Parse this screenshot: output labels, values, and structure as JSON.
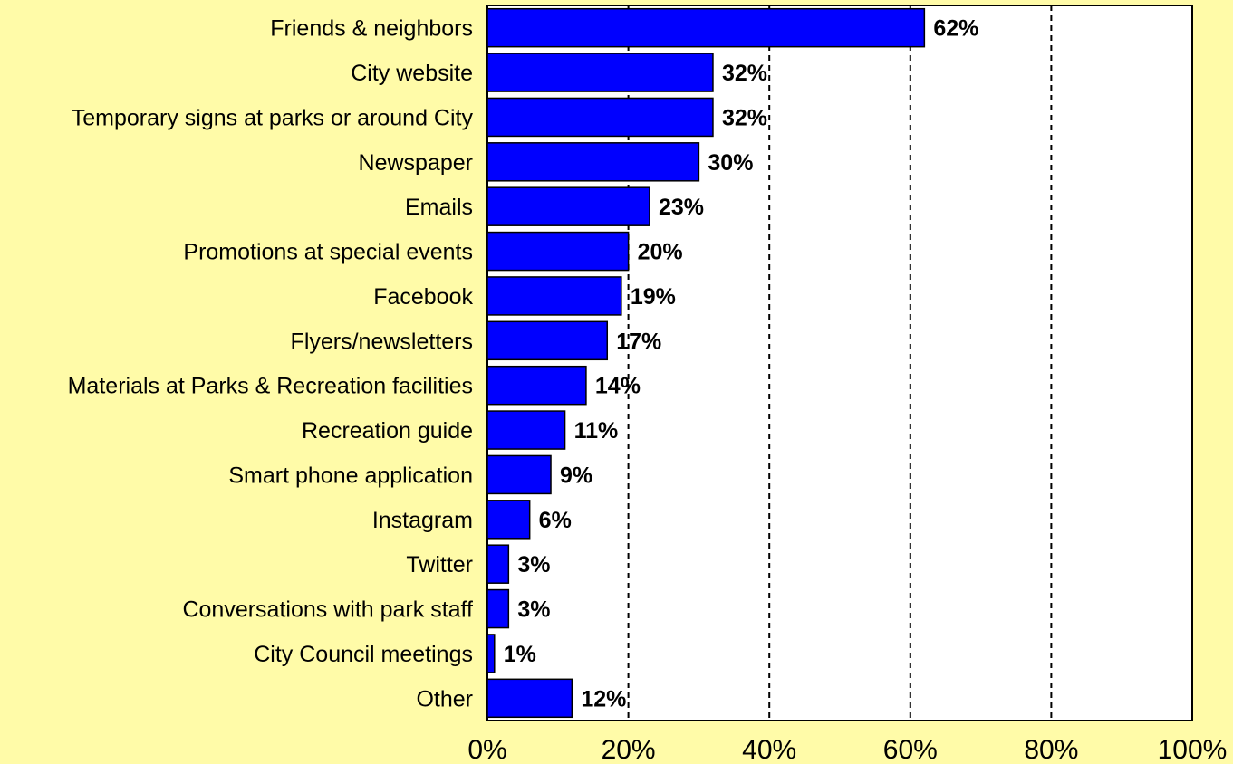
{
  "chart_data": {
    "type": "bar",
    "orientation": "horizontal",
    "categories": [
      "Friends & neighbors",
      "City website",
      "Temporary signs at parks or around City",
      "Newspaper",
      "Emails",
      "Promotions at special events",
      "Facebook",
      "Flyers/newsletters",
      "Materials at Parks & Recreation facilities",
      "Recreation guide",
      "Smart phone application",
      "Instagram",
      "Twitter",
      "Conversations with park staff",
      "City Council meetings",
      "Other"
    ],
    "values": [
      62,
      32,
      32,
      30,
      23,
      20,
      19,
      17,
      14,
      11,
      9,
      6,
      3,
      3,
      1,
      12
    ],
    "value_labels": [
      "62%",
      "32%",
      "32%",
      "30%",
      "23%",
      "20%",
      "19%",
      "17%",
      "14%",
      "11%",
      "9%",
      "6%",
      "3%",
      "3%",
      "1%",
      "12%"
    ],
    "xlim": [
      0,
      100
    ],
    "xticks": [
      0,
      20,
      40,
      60,
      80,
      100
    ],
    "xtick_labels": [
      "0%",
      "20%",
      "40%",
      "60%",
      "80%",
      "100%"
    ],
    "grid": "vertical dashed",
    "title": "",
    "xlabel": "",
    "ylabel": "",
    "colors": {
      "bar": "#0000FF",
      "background": "#FFFBA8",
      "plot_area": "#FFFFFF"
    }
  }
}
